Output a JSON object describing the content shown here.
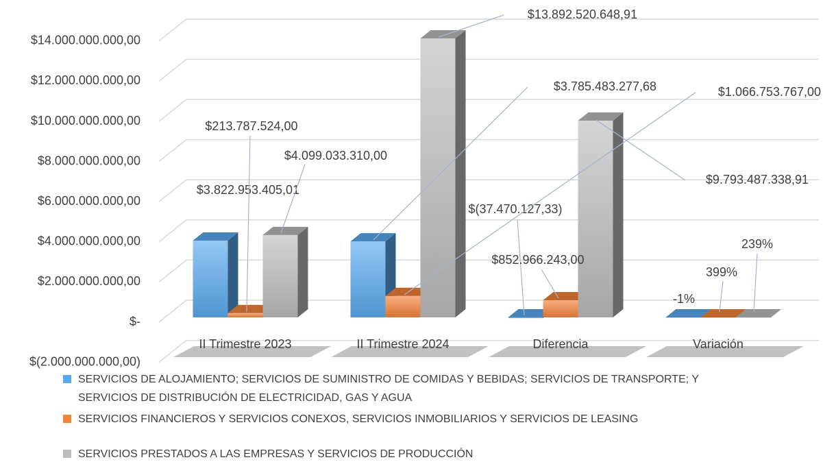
{
  "chart_data": {
    "type": "bar3d",
    "categories": [
      "II Trimestre 2023",
      "II Trimestre 2024",
      "Diferencia",
      "Variación"
    ],
    "series": [
      {
        "name": "SERVICIOS DE ALOJAMIENTO; SERVICIOS DE SUMINISTRO DE COMIDAS Y BEBIDAS; SERVICIOS DE TRANSPORTE; Y SERVICIOS DE DISTRIBUCIÓN DE ELECTRICIDAD, GAS Y AGUA",
        "color": "#5aa9f0",
        "values": [
          3822953405.01,
          3785483277.68,
          -37470127.33,
          -0.01
        ],
        "value_labels": [
          "$3.822.953.405,01",
          "$3.785.483.277,68",
          "$(37.470.127,33)",
          "-1%"
        ]
      },
      {
        "name": "SERVICIOS FINANCIEROS Y SERVICIOS CONEXOS, SERVICIOS INMOBILIARIOS Y SERVICIOS DE LEASING",
        "color": "#f5833a",
        "values": [
          213787524.0,
          1066753767.0,
          852966243.0,
          3.99
        ],
        "value_labels": [
          "$213.787.524,00",
          "$1.066.753.767,00",
          "$852.966.243,00",
          "399%"
        ]
      },
      {
        "name": "SERVICIOS PRESTADOS A LAS EMPRESAS Y SERVICIOS DE PRODUCCIÓN",
        "color": "#bdbdbd",
        "values": [
          4099033310.0,
          13892520648.91,
          9793487338.91,
          2.39
        ],
        "value_labels": [
          "$4.099.033.310,00",
          "$13.892.520.648,91",
          "$9.793.487.338,91",
          "239%"
        ]
      }
    ],
    "ylim": [
      -2000000000,
      14000000000
    ],
    "yticks": [
      {
        "value": -2000000000,
        "label": "$(2.000.000.000,00)"
      },
      {
        "value": 0,
        "label": "$-"
      },
      {
        "value": 2000000000,
        "label": "$2.000.000.000,00"
      },
      {
        "value": 4000000000,
        "label": "$4.000.000.000,00"
      },
      {
        "value": 6000000000,
        "label": "$6.000.000.000,00"
      },
      {
        "value": 8000000000,
        "label": "$8.000.000.000,00"
      },
      {
        "value": 10000000000,
        "label": "$10.000.000.000,00"
      },
      {
        "value": 12000000000,
        "label": "$12.000.000.000,00"
      },
      {
        "value": 14000000000,
        "label": "$14.000.000.000,00"
      }
    ],
    "grid": true,
    "legend": "bottom"
  }
}
